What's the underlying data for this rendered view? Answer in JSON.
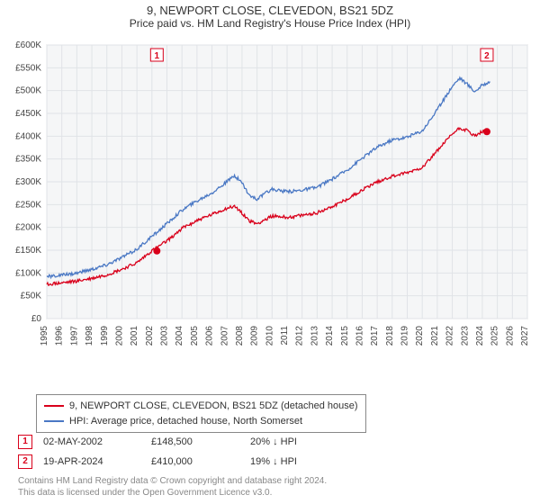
{
  "title": "9, NEWPORT CLOSE, CLEVEDON, BS21 5DZ",
  "subtitle": "Price paid vs. HM Land Registry's House Price Index (HPI)",
  "chart": {
    "type": "line",
    "background_color": "#ffffff",
    "plot_background_color": "#f5f6f7",
    "grid_color": "#e0e3e7",
    "axis_color": "#666666",
    "tick_font_size": 10,
    "x": {
      "min": 1995,
      "max": 2027,
      "tick_step": 1
    },
    "y": {
      "min": 0,
      "max": 600000,
      "tick_step": 50000,
      "label_prefix": "£",
      "label_suffix": "K",
      "label_divisor": 1000
    },
    "series": [
      {
        "name": "property",
        "label": "9, NEWPORT CLOSE, CLEVEDON, BS21 5DZ (detached house)",
        "color": "#d9001b",
        "width": 1.3,
        "points": [
          [
            1995,
            75000
          ],
          [
            1996,
            78000
          ],
          [
            1997,
            82000
          ],
          [
            1998,
            88000
          ],
          [
            1999,
            96000
          ],
          [
            2000,
            108000
          ],
          [
            2001,
            122000
          ],
          [
            2002,
            148500
          ],
          [
            2003,
            170000
          ],
          [
            2004,
            198000
          ],
          [
            2005,
            215000
          ],
          [
            2006,
            228000
          ],
          [
            2007,
            242000
          ],
          [
            2007.5,
            246000
          ],
          [
            2008,
            232000
          ],
          [
            2008.5,
            214000
          ],
          [
            2009,
            208000
          ],
          [
            2010,
            225000
          ],
          [
            2011,
            222000
          ],
          [
            2012,
            226000
          ],
          [
            2013,
            232000
          ],
          [
            2014,
            246000
          ],
          [
            2015,
            262000
          ],
          [
            2016,
            282000
          ],
          [
            2017,
            300000
          ],
          [
            2018,
            312000
          ],
          [
            2019,
            320000
          ],
          [
            2020,
            332000
          ],
          [
            2021,
            368000
          ],
          [
            2022,
            405000
          ],
          [
            2022.5,
            418000
          ],
          [
            2023,
            412000
          ],
          [
            2023.5,
            400000
          ],
          [
            2024,
            410000
          ],
          [
            2024.3,
            410000
          ]
        ]
      },
      {
        "name": "hpi",
        "label": "HPI: Average price, detached house, North Somerset",
        "color": "#4a78c4",
        "width": 1.3,
        "points": [
          [
            1995,
            92000
          ],
          [
            1996,
            95000
          ],
          [
            1997,
            100000
          ],
          [
            1998,
            108000
          ],
          [
            1999,
            118000
          ],
          [
            2000,
            134000
          ],
          [
            2001,
            152000
          ],
          [
            2002,
            180000
          ],
          [
            2003,
            208000
          ],
          [
            2004,
            238000
          ],
          [
            2005,
            258000
          ],
          [
            2006,
            276000
          ],
          [
            2007,
            300000
          ],
          [
            2007.5,
            314000
          ],
          [
            2008,
            298000
          ],
          [
            2008.5,
            270000
          ],
          [
            2009,
            262000
          ],
          [
            2010,
            284000
          ],
          [
            2011,
            278000
          ],
          [
            2012,
            282000
          ],
          [
            2013,
            288000
          ],
          [
            2014,
            306000
          ],
          [
            2015,
            326000
          ],
          [
            2016,
            352000
          ],
          [
            2017,
            376000
          ],
          [
            2018,
            392000
          ],
          [
            2019,
            398000
          ],
          [
            2020,
            412000
          ],
          [
            2021,
            458000
          ],
          [
            2022,
            510000
          ],
          [
            2022.5,
            528000
          ],
          [
            2023,
            514000
          ],
          [
            2023.5,
            498000
          ],
          [
            2024,
            512000
          ],
          [
            2024.5,
            520000
          ]
        ]
      }
    ],
    "markers": [
      {
        "id": "1",
        "x": 2002.33,
        "y": 148500,
        "color": "#d9001b"
      },
      {
        "id": "2",
        "x": 2024.3,
        "y": 410000,
        "color": "#d9001b"
      }
    ],
    "marker_box_border": "#d9001b",
    "marker_box_text": "#d9001b"
  },
  "legend": {
    "entries": [
      {
        "color": "#d9001b",
        "label": "9, NEWPORT CLOSE, CLEVEDON, BS21 5DZ (detached house)"
      },
      {
        "color": "#4a78c4",
        "label": "HPI: Average price, detached house, North Somerset"
      }
    ]
  },
  "events": [
    {
      "id": "1",
      "date": "02-MAY-2002",
      "price": "£148,500",
      "delta": "20% ↓ HPI",
      "box_color": "#d9001b"
    },
    {
      "id": "2",
      "date": "19-APR-2024",
      "price": "£410,000",
      "delta": "19% ↓ HPI",
      "box_color": "#d9001b"
    }
  ],
  "license_line1": "Contains HM Land Registry data © Crown copyright and database right 2024.",
  "license_line2": "This data is licensed under the Open Government Licence v3.0."
}
